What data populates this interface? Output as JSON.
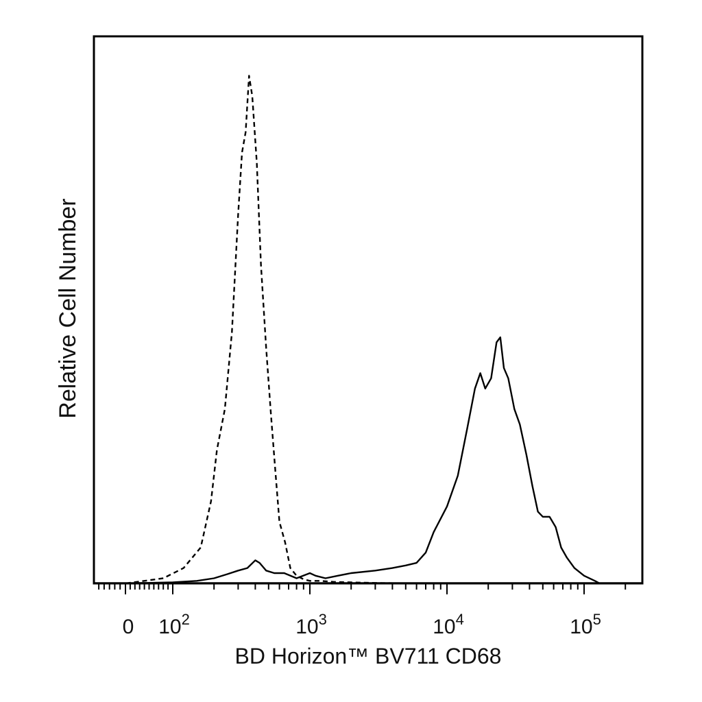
{
  "chart_data": {
    "type": "line",
    "title": "",
    "xlabel": "BD Horizon™ BV711 CD68",
    "ylabel": "Relative Cell Number",
    "x_scale": "biexponential",
    "xlim": [
      -60,
      250000
    ],
    "ylim": [
      0,
      1.0
    ],
    "grid": false,
    "legend": "none",
    "x_tick_labels": [
      {
        "base": "0",
        "exp": "",
        "value": 0
      },
      {
        "base": "10",
        "exp": "2",
        "value": 100
      },
      {
        "base": "10",
        "exp": "3",
        "value": 1000
      },
      {
        "base": "10",
        "exp": "4",
        "value": 10000
      },
      {
        "base": "10",
        "exp": "5",
        "value": 100000
      }
    ],
    "series": [
      {
        "style": "dashed",
        "x": [
          -30,
          0,
          40,
          80,
          120,
          160,
          190,
          210,
          240,
          270,
          300,
          320,
          340,
          360,
          380,
          410,
          440,
          480,
          520,
          560,
          600,
          660,
          720,
          800,
          900,
          1000,
          1200,
          1500,
          2000,
          3000,
          5000
        ],
        "y": [
          0.0,
          0.0,
          0.005,
          0.01,
          0.03,
          0.07,
          0.16,
          0.26,
          0.34,
          0.49,
          0.72,
          0.84,
          0.88,
          0.99,
          0.95,
          0.82,
          0.62,
          0.46,
          0.33,
          0.22,
          0.12,
          0.08,
          0.03,
          0.015,
          0.008,
          0.005,
          0.005,
          0.003,
          0.002,
          0.001,
          0.0
        ]
      },
      {
        "style": "solid",
        "x": [
          -60,
          0,
          100,
          150,
          200,
          250,
          300,
          350,
          400,
          430,
          480,
          550,
          650,
          800,
          1000,
          1100,
          1300,
          1600,
          2000,
          3000,
          4000,
          5000,
          6000,
          7000,
          8000,
          10000,
          12000,
          14000,
          16000,
          17500,
          19000,
          21000,
          23000,
          24500,
          26000,
          28000,
          31000,
          34000,
          38000,
          42000,
          46000,
          50000,
          56000,
          62000,
          68000,
          75000,
          85000,
          100000,
          120000,
          130000
        ],
        "y": [
          0.0,
          0.0,
          0.002,
          0.005,
          0.01,
          0.018,
          0.025,
          0.03,
          0.045,
          0.04,
          0.025,
          0.02,
          0.02,
          0.01,
          0.02,
          0.015,
          0.01,
          0.015,
          0.02,
          0.025,
          0.03,
          0.035,
          0.04,
          0.06,
          0.1,
          0.15,
          0.21,
          0.3,
          0.38,
          0.41,
          0.38,
          0.4,
          0.47,
          0.48,
          0.42,
          0.4,
          0.34,
          0.31,
          0.25,
          0.19,
          0.14,
          0.13,
          0.13,
          0.11,
          0.07,
          0.05,
          0.03,
          0.015,
          0.005,
          0.0
        ]
      }
    ]
  }
}
